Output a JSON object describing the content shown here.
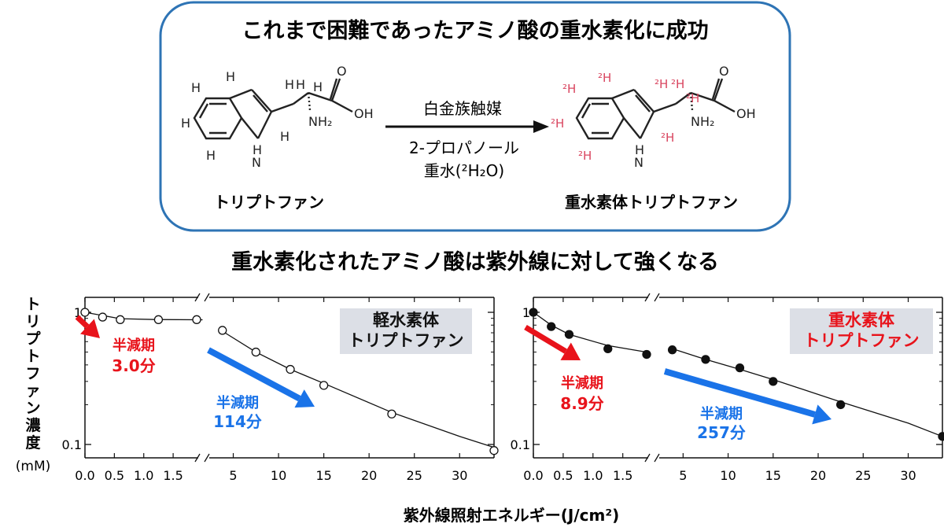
{
  "top_box": {
    "title": "これまで困難であったアミノ酸の重水素化に成功",
    "reactant_name": "トリプトファン",
    "product_name": "重水素体トリプトファン",
    "arrow_above": "白金族触媒",
    "arrow_below_1": "2-プロパノール",
    "arrow_below_2": "重水(²H₂O)",
    "atoms": {
      "H": "H",
      "OH": "OH",
      "NH2": "NH₂",
      "NH": "H\nN",
      "D": "²H"
    }
  },
  "subtitle": "重水素化されたアミノ酸は紫外線に対して強くなる",
  "y_axis_label_lines": [
    "トリプトファン濃度",
    "(mM)"
  ],
  "x_axis_label": "紫外線照射エネルギー(J/cm²)",
  "colors": {
    "box_border": "#2e74b5",
    "red": "#e8131b",
    "blue": "#1a73e8",
    "deut": "#d9455f",
    "legend_bg": "#dcdfe6"
  },
  "chart_data": [
    {
      "type": "scatter",
      "name": "light",
      "legend": [
        "軽水素体",
        "トリプトファン"
      ],
      "legend_color": "black",
      "marker": "open-circle",
      "y_scale": "log",
      "yticks": [
        "1",
        "0.1"
      ],
      "xticks_left": [
        "0.0",
        "0.5",
        "1.0",
        "1.5"
      ],
      "xticks_right": [
        "5",
        "10",
        "15",
        "20",
        "25",
        "30"
      ],
      "x_break": true,
      "points": [
        [
          0.0,
          1.0
        ],
        [
          0.3,
          0.92
        ],
        [
          0.6,
          0.88
        ],
        [
          1.25,
          0.88
        ],
        [
          1.9,
          0.88
        ],
        [
          3.8,
          0.73
        ],
        [
          7.5,
          0.5
        ],
        [
          11.3,
          0.37
        ],
        [
          15.0,
          0.28
        ],
        [
          22.5,
          0.17
        ],
        [
          33.8,
          0.09
        ]
      ],
      "fit_curve": [
        [
          0.0,
          1.0
        ],
        [
          0.6,
          0.895
        ],
        [
          1.2,
          0.882
        ],
        [
          2.0,
          0.878
        ],
        [
          3.8,
          0.72
        ],
        [
          7.5,
          0.5
        ],
        [
          11.3,
          0.37
        ],
        [
          15,
          0.29
        ],
        [
          22.5,
          0.175
        ],
        [
          30,
          0.115
        ],
        [
          33.8,
          0.095
        ]
      ],
      "annotations": [
        {
          "label": "半減期",
          "value": "3.0分",
          "color": "red"
        },
        {
          "label": "半減期",
          "value": "114分",
          "color": "blue"
        }
      ]
    },
    {
      "type": "scatter",
      "name": "deuterated",
      "legend": [
        "重水素体",
        "トリプトファン"
      ],
      "legend_color": "red",
      "marker": "filled-circle",
      "y_scale": "log",
      "yticks": [
        "1",
        "0.1"
      ],
      "xticks_left": [
        "0.0",
        "0.5",
        "1.0",
        "1.5"
      ],
      "xticks_right": [
        "5",
        "10",
        "15",
        "20",
        "25",
        "30"
      ],
      "x_break": true,
      "points": [
        [
          0.0,
          1.0
        ],
        [
          0.3,
          0.78
        ],
        [
          0.6,
          0.68
        ],
        [
          1.25,
          0.53
        ],
        [
          1.9,
          0.48
        ],
        [
          3.8,
          0.52
        ],
        [
          7.5,
          0.44
        ],
        [
          11.3,
          0.38
        ],
        [
          15.0,
          0.3
        ],
        [
          22.5,
          0.2
        ],
        [
          33.8,
          0.115
        ]
      ],
      "fit_curve": [
        [
          0.0,
          1.0
        ],
        [
          0.3,
          0.8
        ],
        [
          0.6,
          0.68
        ],
        [
          1.25,
          0.56
        ],
        [
          1.9,
          0.5
        ],
        [
          3.8,
          0.53
        ],
        [
          7.5,
          0.44
        ],
        [
          11.3,
          0.37
        ],
        [
          15,
          0.31
        ],
        [
          22.5,
          0.21
        ],
        [
          30,
          0.145
        ],
        [
          33.8,
          0.115
        ]
      ],
      "annotations": [
        {
          "label": "半減期",
          "value": "8.9分",
          "color": "red"
        },
        {
          "label": "半減期",
          "value": "257分",
          "color": "blue"
        }
      ]
    }
  ]
}
